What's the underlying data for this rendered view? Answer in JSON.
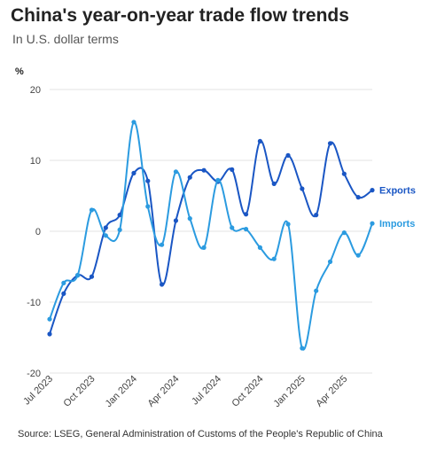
{
  "header": {
    "title": "China's year-on-year trade flow trends",
    "subtitle": "In U.S. dollar terms"
  },
  "footer": {
    "source": "Source: LSEG, General Administration of Customs of the People's Republic of China"
  },
  "chart_data": {
    "type": "line",
    "yunit": "%",
    "ylim": [
      -20,
      20
    ],
    "yticks": [
      20,
      10,
      0,
      -10,
      -20
    ],
    "grid": true,
    "x_dates": [
      "2023-07",
      "2023-08",
      "2023-09",
      "2023-10",
      "2023-11",
      "2023-12",
      "2024-01",
      "2024-02",
      "2024-03",
      "2024-04",
      "2024-05",
      "2024-06",
      "2024-07",
      "2024-08",
      "2024-09",
      "2024-10",
      "2024-11",
      "2024-12",
      "2025-01",
      "2025-02",
      "2025-03",
      "2025-04",
      "2025-05",
      "2025-06"
    ],
    "xticks": [
      {
        "label": "Jul 2023",
        "date": "2023-07"
      },
      {
        "label": "Oct 2023",
        "date": "2023-10"
      },
      {
        "label": "Jan 2024",
        "date": "2024-01"
      },
      {
        "label": "Apr 2024",
        "date": "2024-04"
      },
      {
        "label": "Jul 2024",
        "date": "2024-07"
      },
      {
        "label": "Oct 2024",
        "date": "2024-10"
      },
      {
        "label": "Jan 2025",
        "date": "2025-01"
      },
      {
        "label": "Apr 2025",
        "date": "2025-04"
      }
    ],
    "series": [
      {
        "name": "Exports",
        "color": "#1a56c4",
        "values": [
          -14.5,
          -8.8,
          -6.2,
          -6.4,
          0.5,
          2.3,
          8.2,
          7.1,
          -7.5,
          1.5,
          7.6,
          8.6,
          7.0,
          8.7,
          2.4,
          12.7,
          6.7,
          10.7,
          6.0,
          2.3,
          12.4,
          8.1,
          4.8,
          5.8
        ]
      },
      {
        "name": "Imports",
        "color": "#2b9be0",
        "values": [
          -12.4,
          -7.3,
          -6.2,
          3.0,
          -0.6,
          0.2,
          15.4,
          3.5,
          -1.9,
          8.4,
          1.8,
          -2.3,
          7.2,
          0.5,
          0.3,
          -2.3,
          -3.9,
          1.0,
          -16.5,
          -8.4,
          -4.3,
          -0.2,
          -3.4,
          1.1
        ]
      }
    ]
  }
}
